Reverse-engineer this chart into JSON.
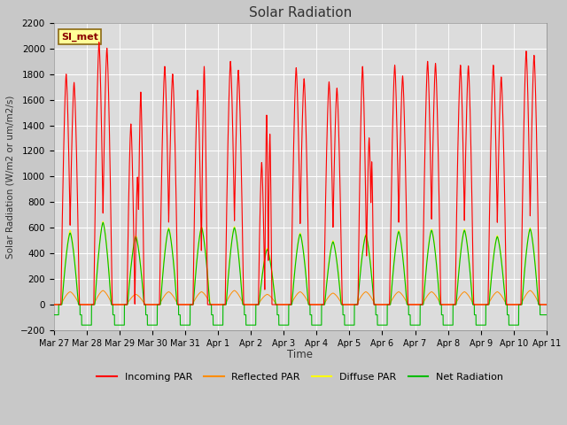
{
  "title": "Solar Radiation",
  "ylabel": "Solar Radiation (W/m2 or um/m2/s)",
  "xlabel": "Time",
  "ylim": [
    -200,
    2200
  ],
  "yticks": [
    -200,
    0,
    200,
    400,
    600,
    800,
    1000,
    1200,
    1400,
    1600,
    1800,
    2000,
    2200
  ],
  "xtick_labels": [
    "Mar 27",
    "Mar 28",
    "Mar 29",
    "Mar 30",
    "Mar 31",
    "Apr 1",
    "Apr 2",
    "Apr 3",
    "Apr 4",
    "Apr 5",
    "Apr 6",
    "Apr 7",
    "Apr 8",
    "Apr 9",
    "Apr 10",
    "Apr 11"
  ],
  "annotation_text": "SI_met",
  "annotation_color": "#8B0000",
  "annotation_bg": "#FFFF99",
  "annotation_border": "#8B6914",
  "colors": {
    "incoming": "#FF0000",
    "reflected": "#FF8C00",
    "diffuse": "#FFFF00",
    "net": "#00BB00"
  },
  "legend_labels": [
    "Incoming PAR",
    "Reflected PAR",
    "Diffuse PAR",
    "Net Radiation"
  ],
  "fig_bg": "#C8C8C8",
  "plot_bg": "#DCDCDC",
  "grid_color": "#FFFFFF",
  "incoming_peaks": [
    1800,
    2050,
    1660,
    1860,
    1860,
    1900,
    1480,
    1850,
    1740,
    1860,
    1870,
    1900,
    1870,
    1870,
    1980
  ],
  "net_peaks": [
    560,
    640,
    530,
    590,
    600,
    600,
    430,
    550,
    490,
    540,
    570,
    580,
    580,
    530,
    590
  ],
  "diffuse_peaks": [
    580,
    650,
    540,
    600,
    610,
    610,
    440,
    560,
    500,
    550,
    580,
    590,
    590,
    540,
    600
  ],
  "reflected_peaks": [
    100,
    110,
    80,
    100,
    100,
    110,
    80,
    100,
    90,
    100,
    100,
    100,
    100,
    100,
    110
  ],
  "night_net": -80,
  "n_days": 15
}
